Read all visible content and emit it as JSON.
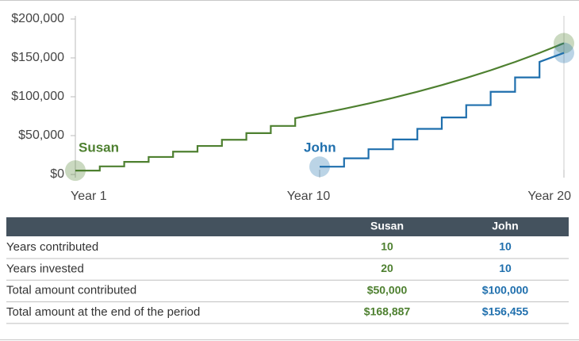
{
  "chart_data": {
    "type": "line",
    "xlim": [
      0,
      20
    ],
    "xticks": [
      {
        "value": 0,
        "label": "Year 1"
      },
      {
        "value": 10,
        "label": "Year 10"
      },
      {
        "value": 20,
        "label": "Year 20"
      }
    ],
    "ylim": [
      0,
      200000
    ],
    "yticks": [
      {
        "value": 0,
        "label": "$0"
      },
      {
        "value": 50000,
        "label": "$50,000"
      },
      {
        "value": 100000,
        "label": "$100,000"
      },
      {
        "value": 150000,
        "label": "$150,000"
      },
      {
        "value": 200000,
        "label": "$200,000"
      }
    ],
    "series": [
      {
        "name": "Susan",
        "color": "#4e8030",
        "x": [
          0,
          1,
          1,
          2,
          2,
          3,
          3,
          4,
          4,
          5,
          5,
          6,
          6,
          7,
          7,
          8,
          8,
          9,
          9,
          10,
          11,
          12,
          13,
          14,
          15,
          16,
          17,
          18,
          19,
          20
        ],
        "values": [
          5000,
          5000,
          10400,
          10400,
          16232,
          16232,
          22531,
          22531,
          29333,
          29333,
          36680,
          36680,
          44614,
          44614,
          53183,
          53183,
          62438,
          62438,
          72433,
          78227,
          84485,
          91244,
          98544,
          106427,
          114941,
          124136,
          134067,
          144792,
          156376,
          168887
        ]
      },
      {
        "name": "John",
        "color": "#1f6fad",
        "x": [
          10,
          11,
          11,
          12,
          12,
          13,
          13,
          14,
          14,
          15,
          15,
          16,
          16,
          17,
          17,
          18,
          18,
          19,
          19,
          20
        ],
        "values": [
          10000,
          10000,
          20800,
          20800,
          32464,
          32464,
          45061,
          45061,
          58666,
          58666,
          73359,
          73359,
          89228,
          89228,
          106366,
          106366,
          124876,
          124876,
          144866,
          156455
        ]
      }
    ]
  },
  "table": {
    "columns": [
      "Susan",
      "John"
    ],
    "rows": [
      [
        "Years contributed",
        "10",
        "10"
      ],
      [
        "Years invested",
        "20",
        "10"
      ],
      [
        "Total amount contributed",
        "$50,000",
        "$100,000"
      ],
      [
        "Total amount at the end of the period",
        "$168,887",
        "$156,455"
      ]
    ]
  }
}
